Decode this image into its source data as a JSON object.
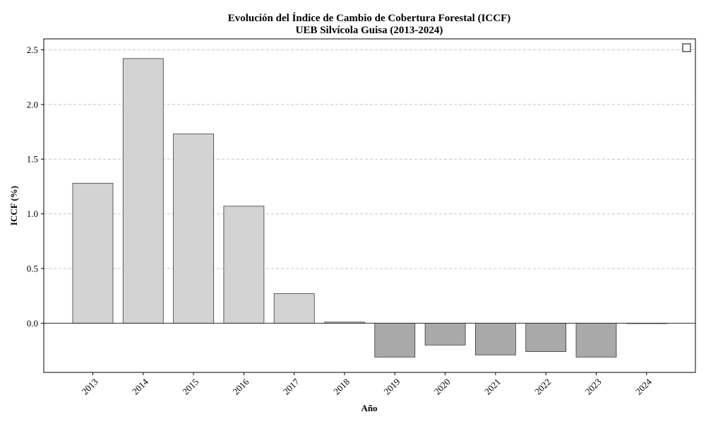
{
  "chart_data": {
    "type": "bar",
    "title_line1": "Evolución del Índice de Cambio de Cobertura Forestal (ICCF)",
    "title_line2": "UEB Silvícola Guisa (2013-2024)",
    "xlabel": "Año",
    "ylabel": "ICCF (%)",
    "categories": [
      "2013",
      "2014",
      "2015",
      "2016",
      "2017",
      "2018",
      "2019",
      "2020",
      "2021",
      "2022",
      "2023",
      "2024"
    ],
    "values": [
      1.28,
      2.42,
      1.73,
      1.07,
      0.27,
      0.01,
      -0.31,
      -0.2,
      -0.29,
      -0.26,
      -0.31,
      0.0
    ],
    "ylim": [
      -0.45,
      2.6
    ],
    "yticks": [
      0.0,
      0.5,
      1.0,
      1.5,
      2.0,
      2.5
    ],
    "ytick_labels": [
      "0.0",
      "0.5",
      "1.0",
      "1.5",
      "2.0",
      "2.5"
    ],
    "grid": "y-dashed",
    "legend": "top-right (empty entry)",
    "colors": {
      "positive": "#d3d3d3",
      "negative": "#a9a9a9",
      "edge": "#3a3a3a"
    }
  }
}
